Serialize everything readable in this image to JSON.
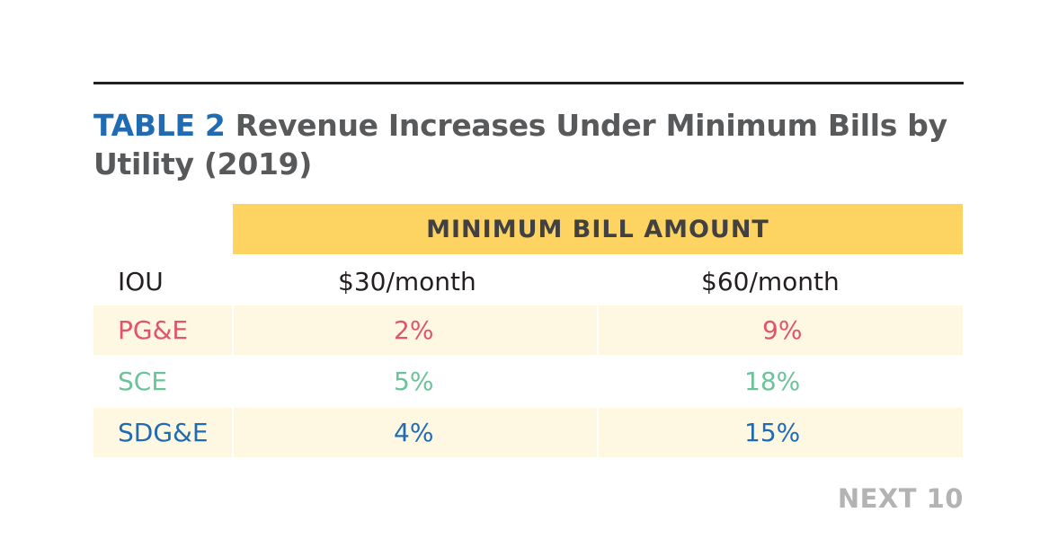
{
  "title": {
    "label": "TABLE 2",
    "text": "Revenue Increases Under Minimum Bills by Utility (2019)"
  },
  "span_header": "MINIMUM BILL AMOUNT",
  "colors": {
    "title_label": "#1f6cb5",
    "title_text": "#58595b",
    "span_header_bg": "#fdd462",
    "row_shade": "#fef8e2",
    "pge": "#e0556a",
    "sce": "#6cc39a",
    "sdge": "#1f6cb5",
    "watermark": "#b3b3b3"
  },
  "chart_data": {
    "type": "table",
    "title": "TABLE 2 Revenue Increases Under Minimum Bills by Utility (2019)",
    "group_header": "MINIMUM BILL AMOUNT",
    "columns": [
      "IOU",
      "$30/month",
      "$60/month"
    ],
    "rows": [
      {
        "iou": "PG&E",
        "values": [
          "2%",
          "9%"
        ],
        "color": "#e0556a",
        "shaded": true
      },
      {
        "iou": "SCE",
        "values": [
          "5%",
          "18%"
        ],
        "color": "#6cc39a",
        "shaded": false
      },
      {
        "iou": "SDG&E",
        "values": [
          "4%",
          "15%"
        ],
        "color": "#1f6cb5",
        "shaded": true
      }
    ]
  },
  "watermark": "NEXT 10"
}
